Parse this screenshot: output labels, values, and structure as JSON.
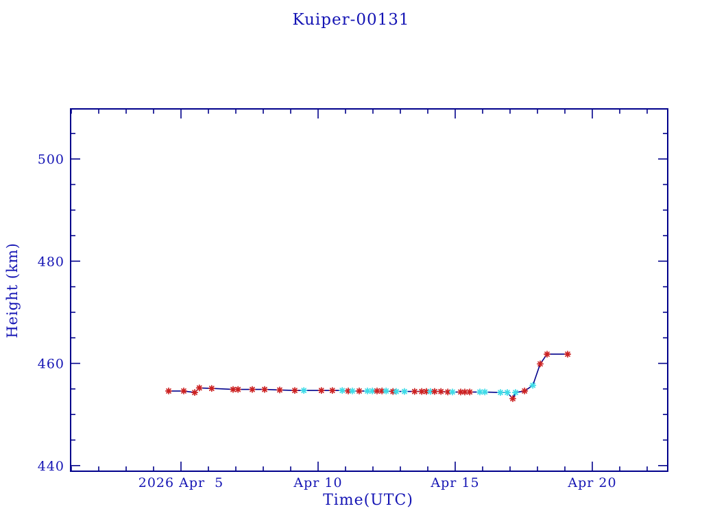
{
  "title": "Kuiper-00131",
  "colors": {
    "background": "#ffffff",
    "text": "#1414b4",
    "axis": "#00008b",
    "line": "#00008b",
    "marker_red": "#cc2222",
    "marker_cyan": "#3fdce8"
  },
  "chart_data": {
    "type": "line",
    "title": "Kuiper-00131",
    "xlabel": "Time(UTC)",
    "ylabel": "Height (km)",
    "x_unit": "day of April 2026 (UTC)",
    "xlim": [
      0.975,
      22.75
    ],
    "ylim": [
      438.9,
      509.8
    ],
    "grid": false,
    "legend": null,
    "x_major_ticks": [
      {
        "value": 5,
        "label": "2026 Apr  5"
      },
      {
        "value": 10,
        "label": "Apr 10"
      },
      {
        "value": 15,
        "label": "Apr 15"
      },
      {
        "value": 20,
        "label": "Apr 20"
      }
    ],
    "x_minor_ticks": [
      1,
      2,
      3,
      4,
      6,
      7,
      8,
      9,
      11,
      12,
      13,
      14,
      16,
      17,
      18,
      19,
      21,
      22
    ],
    "y_major_ticks": [
      {
        "value": 440,
        "label": "440"
      },
      {
        "value": 460,
        "label": "460"
      },
      {
        "value": 480,
        "label": "480"
      },
      {
        "value": 500,
        "label": "500"
      }
    ],
    "y_minor_ticks": [
      445,
      450,
      455,
      465,
      470,
      475,
      485,
      490,
      495,
      505
    ],
    "marker_legend": {
      "r": "red asterisk",
      "c": "cyan asterisk"
    },
    "series": [
      {
        "name": "height",
        "marker": "asterisk",
        "points": [
          [
            4.55,
            454.6,
            "r"
          ],
          [
            5.1,
            454.6,
            "r"
          ],
          [
            5.5,
            454.3,
            "r"
          ],
          [
            5.67,
            455.2,
            "r"
          ],
          [
            6.12,
            455.1,
            "r"
          ],
          [
            6.9,
            454.9,
            "r"
          ],
          [
            7.08,
            454.9,
            "r"
          ],
          [
            7.6,
            454.9,
            "r"
          ],
          [
            8.05,
            454.9,
            "r"
          ],
          [
            8.6,
            454.8,
            "r"
          ],
          [
            9.15,
            454.7,
            "r"
          ],
          [
            9.48,
            454.7,
            "c"
          ],
          [
            10.12,
            454.7,
            "r"
          ],
          [
            10.52,
            454.7,
            "r"
          ],
          [
            10.88,
            454.7,
            "c"
          ],
          [
            11.1,
            454.6,
            "r"
          ],
          [
            11.25,
            454.6,
            "c"
          ],
          [
            11.5,
            454.6,
            "r"
          ],
          [
            11.8,
            454.6,
            "c"
          ],
          [
            11.98,
            454.6,
            "c"
          ],
          [
            12.15,
            454.6,
            "r"
          ],
          [
            12.33,
            454.6,
            "r"
          ],
          [
            12.48,
            454.6,
            "c"
          ],
          [
            12.73,
            454.5,
            "r"
          ],
          [
            12.85,
            454.5,
            "c"
          ],
          [
            13.15,
            454.5,
            "c"
          ],
          [
            13.52,
            454.5,
            "r"
          ],
          [
            13.78,
            454.5,
            "r"
          ],
          [
            13.95,
            454.5,
            "r"
          ],
          [
            14.1,
            454.5,
            "c"
          ],
          [
            14.25,
            454.5,
            "r"
          ],
          [
            14.48,
            454.5,
            "r"
          ],
          [
            14.73,
            454.4,
            "r"
          ],
          [
            14.9,
            454.4,
            "c"
          ],
          [
            15.2,
            454.4,
            "r"
          ],
          [
            15.35,
            454.4,
            "r"
          ],
          [
            15.53,
            454.4,
            "r"
          ],
          [
            15.9,
            454.4,
            "c"
          ],
          [
            16.08,
            454.4,
            "c"
          ],
          [
            16.65,
            454.3,
            "c"
          ],
          [
            16.9,
            454.3,
            "c"
          ],
          [
            17.1,
            453.1,
            "r"
          ],
          [
            17.2,
            454.3,
            "c"
          ],
          [
            17.53,
            454.6,
            "r"
          ],
          [
            17.83,
            455.7,
            "c"
          ],
          [
            18.1,
            459.9,
            "r"
          ],
          [
            18.35,
            461.8,
            "r"
          ],
          [
            19.1,
            461.8,
            "r"
          ]
        ]
      }
    ]
  },
  "layout_note": "single line plot, box axes with inward ticks on all four sides"
}
